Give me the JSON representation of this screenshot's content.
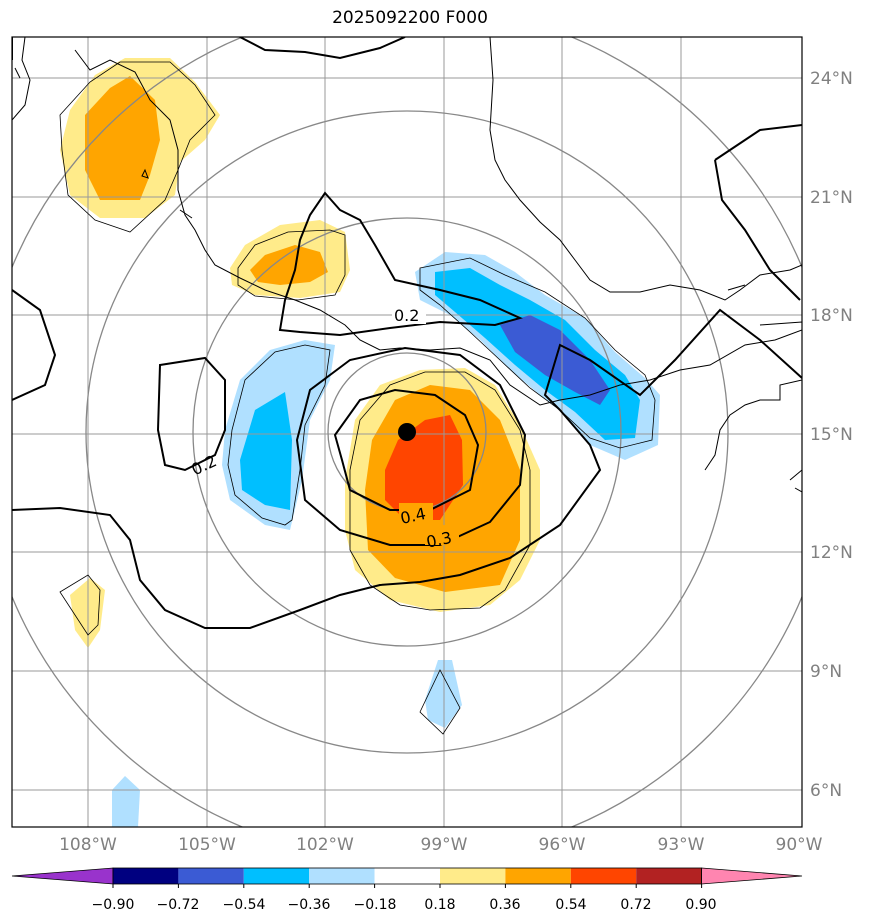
{
  "title": "2025092200 F000",
  "lon_ticks": [
    "108°W",
    "105°W",
    "102°W",
    "99°W",
    "96°W",
    "93°W",
    "90°W"
  ],
  "lat_ticks": [
    "24°N",
    "21°N",
    "18°N",
    "15°N",
    "12°N",
    "9°N",
    "6°N"
  ],
  "contour_labels": [
    "0.2",
    "0.2",
    "0.4",
    "0.3"
  ],
  "colorbar": {
    "ticks": [
      "−0.90",
      "−0.72",
      "−0.54",
      "−0.36",
      "−0.18",
      "0.18",
      "0.36",
      "0.54",
      "0.72",
      "0.90"
    ],
    "colors": [
      "#9933cc",
      "#000080",
      "#3b5bd4",
      "#00bfff",
      "#b0e0ff",
      "#ffffff",
      "#ffeb8a",
      "#ffa500",
      "#ff4500",
      "#b22222",
      "#ff85b0"
    ]
  },
  "colors": {
    "light_yellow": "#ffeb8a",
    "orange": "#ffa500",
    "red_orange": "#ff4500",
    "light_blue": "#b0e0ff",
    "sky_blue": "#00bfff",
    "royal_blue": "#3b5bd4",
    "grid": "#808080"
  },
  "storm_center_icon": "black-dot-icon"
}
